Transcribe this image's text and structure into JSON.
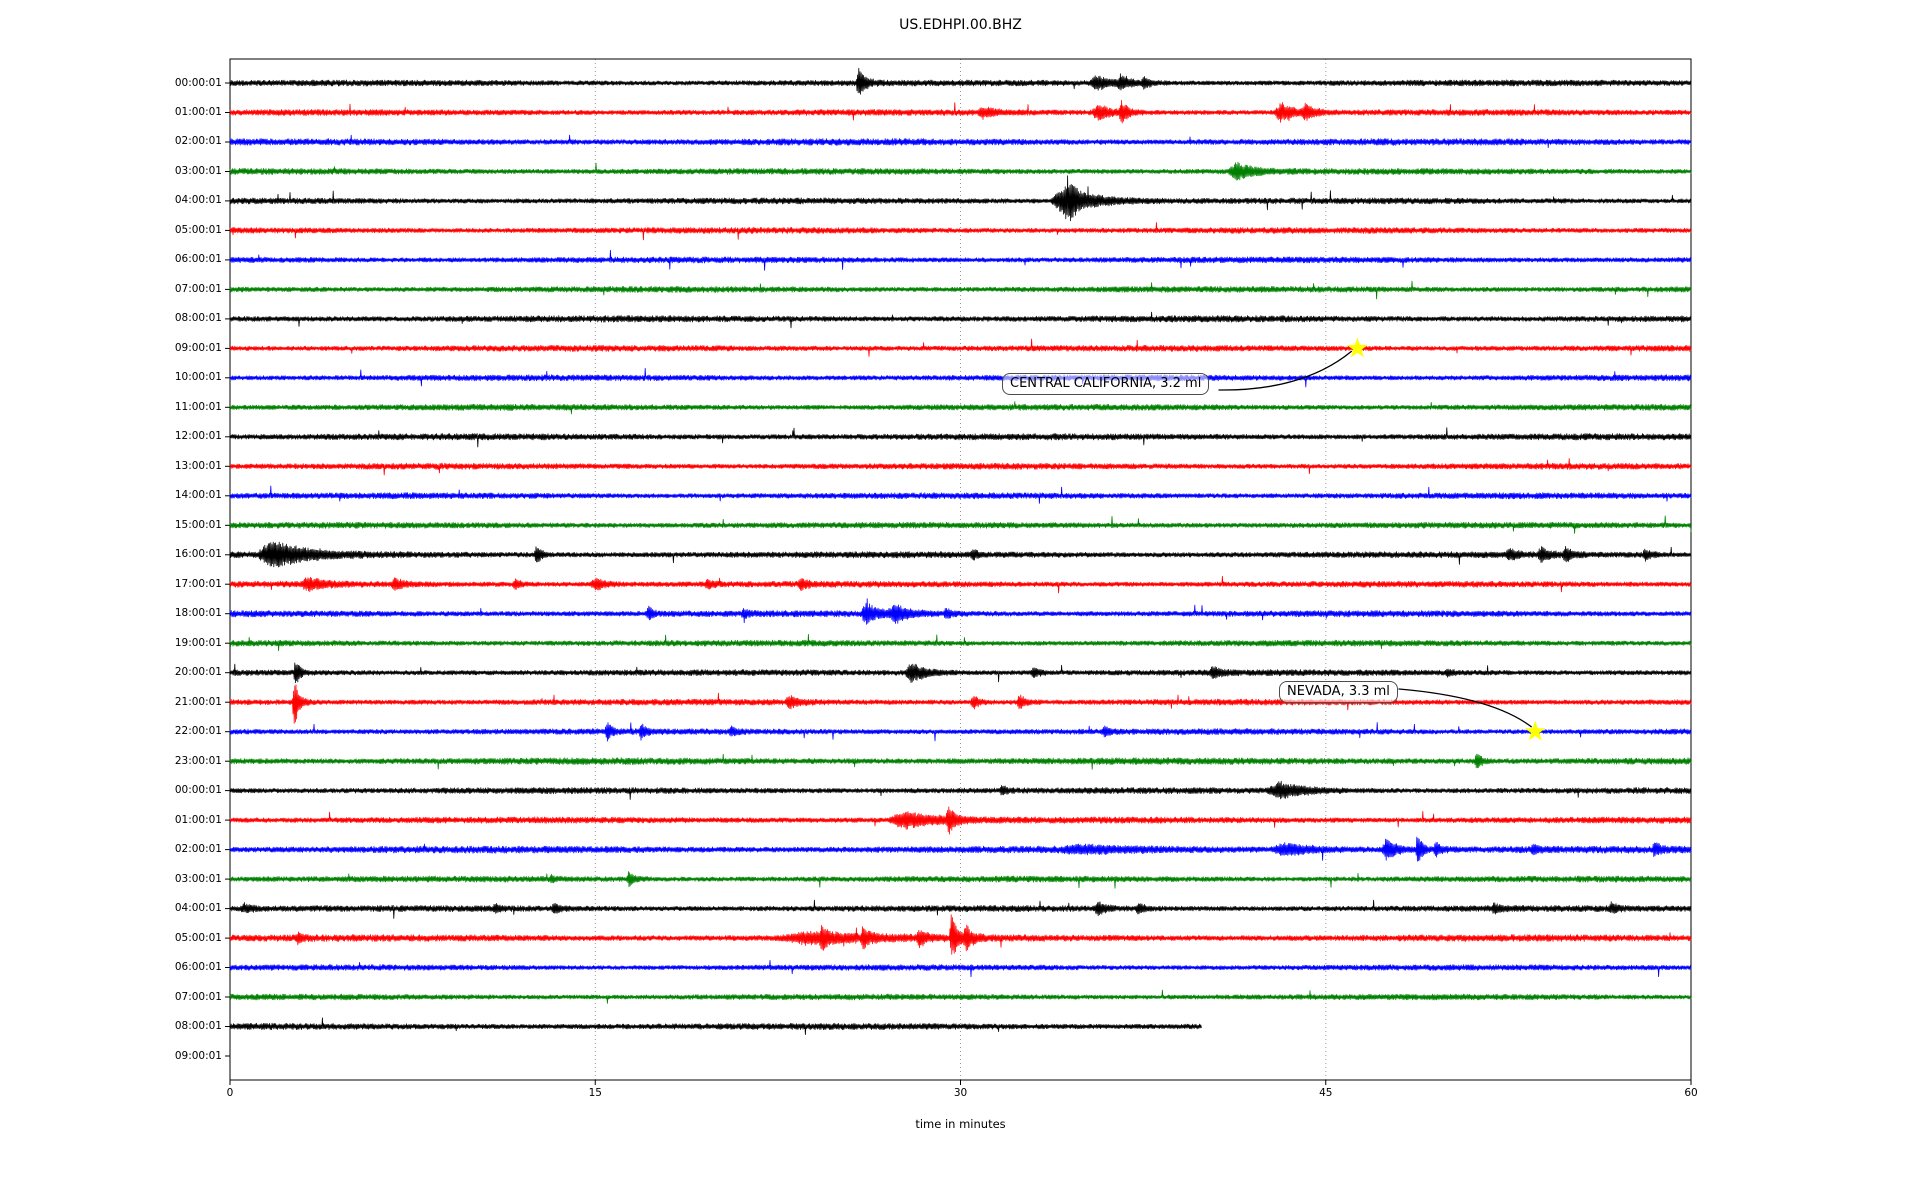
{
  "title": "US.EDHPI.00.BHZ",
  "chart_data": {
    "type": "line",
    "subtype": "helicorder-day-plot-seismogram",
    "title": "US.EDHPI.00.BHZ",
    "xlabel": "time in minutes",
    "x_range": [
      0,
      60
    ],
    "x_ticks": [
      0,
      15,
      30,
      45,
      60
    ],
    "gridlines_minutes": [
      15,
      30,
      45
    ],
    "grid_style": "dotted-vertical",
    "legend_position": "none",
    "color_cycle": [
      "#000000",
      "#ff0000",
      "#0000ff",
      "#008000"
    ],
    "event_note": "events are [start_minute, duration_minutes, amplitude_px] bursts read from the traces",
    "rows": [
      {
        "label": "00:00:01",
        "color": "#000000",
        "noise": 2.0,
        "span_minutes": [
          0,
          60
        ],
        "events": [
          [
            25.7,
            0.5,
            15
          ],
          [
            35.3,
            1.1,
            7
          ],
          [
            36.4,
            0.7,
            7
          ],
          [
            37.4,
            0.5,
            5
          ]
        ]
      },
      {
        "label": "01:00:01",
        "color": "#ff0000",
        "noise": 2.0,
        "span_minutes": [
          0,
          60
        ],
        "events": [
          [
            30.7,
            0.9,
            5
          ],
          [
            35.4,
            1.0,
            8
          ],
          [
            36.5,
            0.5,
            11
          ],
          [
            42.9,
            1.0,
            9
          ],
          [
            44.0,
            0.7,
            7
          ]
        ]
      },
      {
        "label": "02:00:01",
        "color": "#0000ff",
        "noise": 2.2,
        "span_minutes": [
          0,
          60
        ],
        "events": []
      },
      {
        "label": "03:00:01",
        "color": "#008000",
        "noise": 2.0,
        "span_minutes": [
          0,
          60
        ],
        "events": [
          [
            41.0,
            1.4,
            8
          ]
        ]
      },
      {
        "label": "04:00:01",
        "color": "#000000",
        "noise": 2.0,
        "span_minutes": [
          0,
          60
        ],
        "events": [
          [
            33.7,
            2.3,
            15
          ],
          [
            34.3,
            0.4,
            12
          ]
        ]
      },
      {
        "label": "05:00:01",
        "color": "#ff0000",
        "noise": 2.0,
        "span_minutes": [
          0,
          60
        ],
        "events": []
      },
      {
        "label": "06:00:01",
        "color": "#0000ff",
        "noise": 2.0,
        "span_minutes": [
          0,
          60
        ],
        "events": []
      },
      {
        "label": "07:00:01",
        "color": "#008000",
        "noise": 2.0,
        "span_minutes": [
          0,
          60
        ],
        "events": []
      },
      {
        "label": "08:00:01",
        "color": "#000000",
        "noise": 2.15,
        "span_minutes": [
          0,
          60
        ],
        "events": []
      },
      {
        "label": "09:00:01",
        "color": "#ff0000",
        "noise": 2.0,
        "span_minutes": [
          0,
          60
        ],
        "events": []
      },
      {
        "label": "10:00:01",
        "color": "#0000ff",
        "noise": 2.0,
        "span_minutes": [
          0,
          60
        ],
        "events": []
      },
      {
        "label": "11:00:01",
        "color": "#008000",
        "noise": 2.0,
        "span_minutes": [
          0,
          60
        ],
        "events": []
      },
      {
        "label": "12:00:01",
        "color": "#000000",
        "noise": 2.1,
        "span_minutes": [
          0,
          60
        ],
        "events": []
      },
      {
        "label": "13:00:01",
        "color": "#ff0000",
        "noise": 2.0,
        "span_minutes": [
          0,
          60
        ],
        "events": []
      },
      {
        "label": "14:00:01",
        "color": "#0000ff",
        "noise": 2.0,
        "span_minutes": [
          0,
          60
        ],
        "events": []
      },
      {
        "label": "15:00:01",
        "color": "#008000",
        "noise": 2.0,
        "span_minutes": [
          0,
          60
        ],
        "events": []
      },
      {
        "label": "16:00:01",
        "color": "#000000",
        "noise": 2.1,
        "span_minutes": [
          0,
          60
        ],
        "events": [
          [
            1.1,
            2.6,
            13
          ],
          [
            12.5,
            0.35,
            9
          ],
          [
            30.4,
            0.4,
            4
          ],
          [
            52.4,
            0.6,
            6
          ],
          [
            53.7,
            0.6,
            7
          ],
          [
            54.7,
            0.6,
            6
          ],
          [
            58.0,
            0.5,
            5
          ]
        ]
      },
      {
        "label": "17:00:01",
        "color": "#ff0000",
        "noise": 2.0,
        "span_minutes": [
          0,
          60
        ],
        "events": [
          [
            2.9,
            1.2,
            6
          ],
          [
            6.6,
            0.8,
            5
          ],
          [
            11.6,
            0.5,
            4
          ],
          [
            14.8,
            0.8,
            6
          ],
          [
            19.5,
            0.5,
            4
          ],
          [
            23.3,
            0.6,
            5
          ]
        ]
      },
      {
        "label": "18:00:01",
        "color": "#0000ff",
        "noise": 2.1,
        "span_minutes": [
          0,
          60
        ],
        "events": [
          [
            17.1,
            0.4,
            6
          ],
          [
            21.0,
            0.4,
            4
          ],
          [
            25.9,
            0.9,
            10
          ],
          [
            27.0,
            1.2,
            8
          ],
          [
            29.3,
            0.4,
            5
          ]
        ]
      },
      {
        "label": "19:00:01",
        "color": "#008000",
        "noise": 2.0,
        "span_minutes": [
          0,
          60
        ],
        "events": []
      },
      {
        "label": "20:00:01",
        "color": "#000000",
        "noise": 2.0,
        "span_minutes": [
          0,
          60
        ],
        "events": [
          [
            2.6,
            0.35,
            12
          ],
          [
            27.7,
            1.2,
            9
          ],
          [
            32.9,
            0.5,
            5
          ],
          [
            40.2,
            0.6,
            6
          ],
          [
            49.9,
            0.4,
            4
          ]
        ]
      },
      {
        "label": "21:00:01",
        "color": "#ff0000",
        "noise": 2.0,
        "span_minutes": [
          0,
          60
        ],
        "events": [
          [
            2.55,
            0.35,
            26
          ],
          [
            22.8,
            0.7,
            6
          ],
          [
            30.4,
            0.45,
            7
          ],
          [
            32.3,
            0.45,
            8
          ]
        ]
      },
      {
        "label": "22:00:01",
        "color": "#0000ff",
        "noise": 2.0,
        "span_minutes": [
          0,
          60
        ],
        "events": [
          [
            15.4,
            0.35,
            9
          ],
          [
            16.8,
            0.35,
            7
          ],
          [
            20.5,
            0.4,
            4
          ],
          [
            35.8,
            0.4,
            4
          ]
        ]
      },
      {
        "label": "23:00:01",
        "color": "#008000",
        "noise": 2.25,
        "span_minutes": [
          0,
          60
        ],
        "events": [
          [
            51.1,
            0.35,
            9
          ]
        ]
      },
      {
        "label": "00:00:01",
        "color": "#000000",
        "noise": 2.05,
        "span_minutes": [
          0,
          60
        ],
        "events": [
          [
            31.6,
            0.35,
            5
          ],
          [
            42.6,
            2.0,
            8
          ]
        ]
      },
      {
        "label": "01:00:01",
        "color": "#ff0000",
        "noise": 2.1,
        "span_minutes": [
          0,
          60
        ],
        "events": [
          [
            27.0,
            2.8,
            8
          ],
          [
            29.4,
            0.45,
            13
          ]
        ]
      },
      {
        "label": "02:00:01",
        "color": "#0000ff",
        "noise": 2.35,
        "span_minutes": [
          0,
          60
        ],
        "events": [
          [
            34.0,
            3.5,
            3
          ],
          [
            42.7,
            2.5,
            5
          ],
          [
            47.3,
            0.8,
            10
          ],
          [
            48.7,
            0.3,
            20
          ],
          [
            49.4,
            0.5,
            6
          ],
          [
            53.4,
            0.5,
            4
          ],
          [
            58.4,
            0.4,
            7
          ]
        ]
      },
      {
        "label": "03:00:01",
        "color": "#008000",
        "noise": 2.0,
        "span_minutes": [
          0,
          60
        ],
        "events": [
          [
            13.1,
            0.35,
            3
          ],
          [
            16.3,
            0.35,
            8
          ]
        ]
      },
      {
        "label": "04:00:01",
        "color": "#000000",
        "noise": 2.05,
        "span_minutes": [
          0,
          60
        ],
        "events": [
          [
            0.4,
            0.7,
            4
          ],
          [
            10.8,
            0.4,
            4
          ],
          [
            13.2,
            0.5,
            5
          ],
          [
            35.5,
            0.6,
            6
          ],
          [
            37.2,
            0.45,
            5
          ],
          [
            51.8,
            0.5,
            5
          ],
          [
            56.6,
            0.5,
            5
          ]
        ]
      },
      {
        "label": "05:00:01",
        "color": "#ff0000",
        "noise": 2.25,
        "span_minutes": [
          0,
          60
        ],
        "events": [
          [
            2.7,
            0.4,
            5
          ],
          [
            22.5,
            5.0,
            5
          ],
          [
            24.2,
            0.45,
            9
          ],
          [
            25.9,
            0.45,
            10
          ],
          [
            28.2,
            0.45,
            8
          ],
          [
            29.55,
            0.35,
            28
          ],
          [
            30.1,
            0.5,
            12
          ]
        ]
      },
      {
        "label": "06:00:01",
        "color": "#0000ff",
        "noise": 1.9,
        "span_minutes": [
          0,
          60
        ],
        "events": []
      },
      {
        "label": "07:00:01",
        "color": "#008000",
        "noise": 1.9,
        "span_minutes": [
          0,
          60
        ],
        "events": []
      },
      {
        "label": "08:00:01",
        "color": "#000000",
        "noise": 2.1,
        "span_minutes": [
          0,
          39.9
        ],
        "events": []
      },
      {
        "label": "09:00:01",
        "color": "#ff0000",
        "noise": 0,
        "span_minutes": [
          0,
          0
        ],
        "events": []
      }
    ],
    "annotations": [
      {
        "label": "CENTRAL CALIFORNIA, 3.2 ml",
        "row": "09:00:01",
        "row_index": 9,
        "minute": 46.3,
        "marker": "yellow-star",
        "marker_color": "#ffff00"
      },
      {
        "label": "NEVADA, 3.3 ml",
        "row": "22:00:01",
        "row_index": 22,
        "minute": 53.6,
        "marker": "yellow-star",
        "marker_color": "#ffff00"
      }
    ]
  }
}
